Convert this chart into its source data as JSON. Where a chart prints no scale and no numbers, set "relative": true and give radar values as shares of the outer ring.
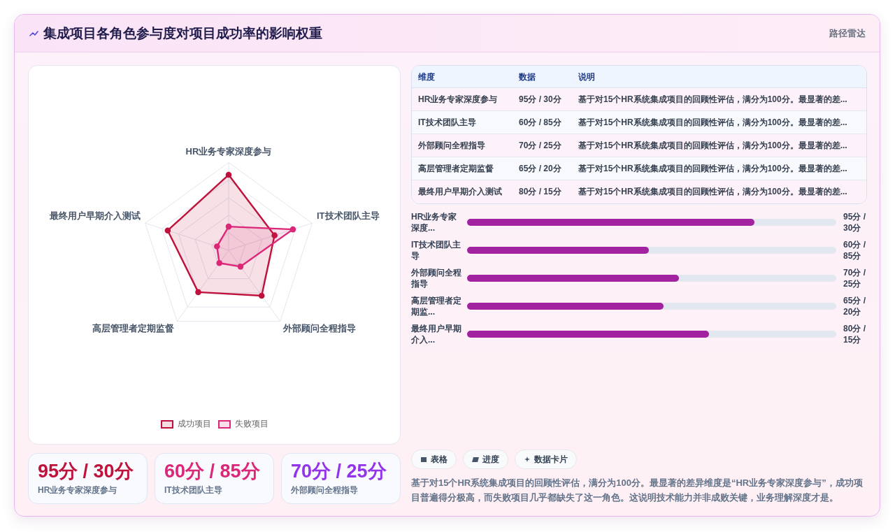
{
  "chart_data": [
    {
      "type": "other",
      "title": "集成项目各角色参与度对项目成功率的影响权重",
      "subtitle": "路径雷达"
    },
    {
      "type": "radar",
      "relative": true,
      "categories": [
        "HR业务专家深度参与",
        "IT技术团队主导",
        "外部顾问全程指导",
        "高层管理者定期监督",
        "最终用户早期介入测试"
      ],
      "series": [
        {
          "name": "成功项目",
          "color": "#be123c",
          "values": [
            0.86,
            0.55,
            0.64,
            0.59,
            0.73
          ]
        },
        {
          "name": "失败项目",
          "color": "#db2777",
          "values": [
            0.27,
            0.77,
            0.23,
            0.18,
            0.14
          ]
        }
      ],
      "grid": true,
      "legend": "bottom",
      "marker": "circle"
    },
    {
      "type": "other",
      "categories": [
        "HR业务专家深度参与",
        "IT技术团队主导",
        "外部顾问全程指导",
        "高层管理者定期监督",
        "最终用户早期介入测试"
      ],
      "value_labels": [
        "95分 / 30分",
        "60分 / 85分",
        "70分 / 25分",
        "65分 / 20分",
        "80分 / 15分"
      ],
      "annotations": [
        "维度",
        "数据",
        "说明",
        "基于对15个HR系统集成项目的回顾性评估，满分为100分。最显著的差...",
        "基于对15个HR系统集成项目的回顾性评估，满分为100分。最显著的差...",
        "基于对15个HR系统集成项目的回顾性评估，满分为100分。最显著的差...",
        "基于对15个HR系统集成项目的回顾性评估，满分为100分。最显著的差...",
        "基于对15个HR系统集成项目的回顾性评估，满分为100分。最显著的差..."
      ]
    },
    {
      "type": "bar",
      "orientation": "horizontal",
      "categories": [
        "HR业务专家深度...",
        "IT技术团队主导",
        "外部顾问全程指导",
        "高层管理者定期监...",
        "最终用户早期介入..."
      ],
      "values": [
        95,
        60,
        70,
        65,
        80
      ],
      "value_labels": [
        "95分 / 30分",
        "60分 / 85分",
        "70分 / 25分",
        "65分 / 20分",
        "80分 / 15分"
      ],
      "color": "#a3229f",
      "xlim": [
        0,
        122
      ]
    },
    {
      "type": "other",
      "categories": [
        "HR业务专家深度参与",
        "IT技术团队主导",
        "外部顾问全程指导"
      ],
      "value_labels": [
        "95分 / 30分",
        "60分 / 85分",
        "70分 / 25分"
      ]
    },
    {
      "type": "other",
      "annotations": [
        "表格",
        "进度",
        "数据卡片",
        "基于对15个HR系统集成项目的回顾性评估，满分为100分。最显著的差异维度是“HR业务专家深度参与”，成功项目普遍得分极高，而失败项目几乎都缺失了这一角色。这说明技术能力并非成败关键，业务理解深度才是。"
      ]
    }
  ]
}
